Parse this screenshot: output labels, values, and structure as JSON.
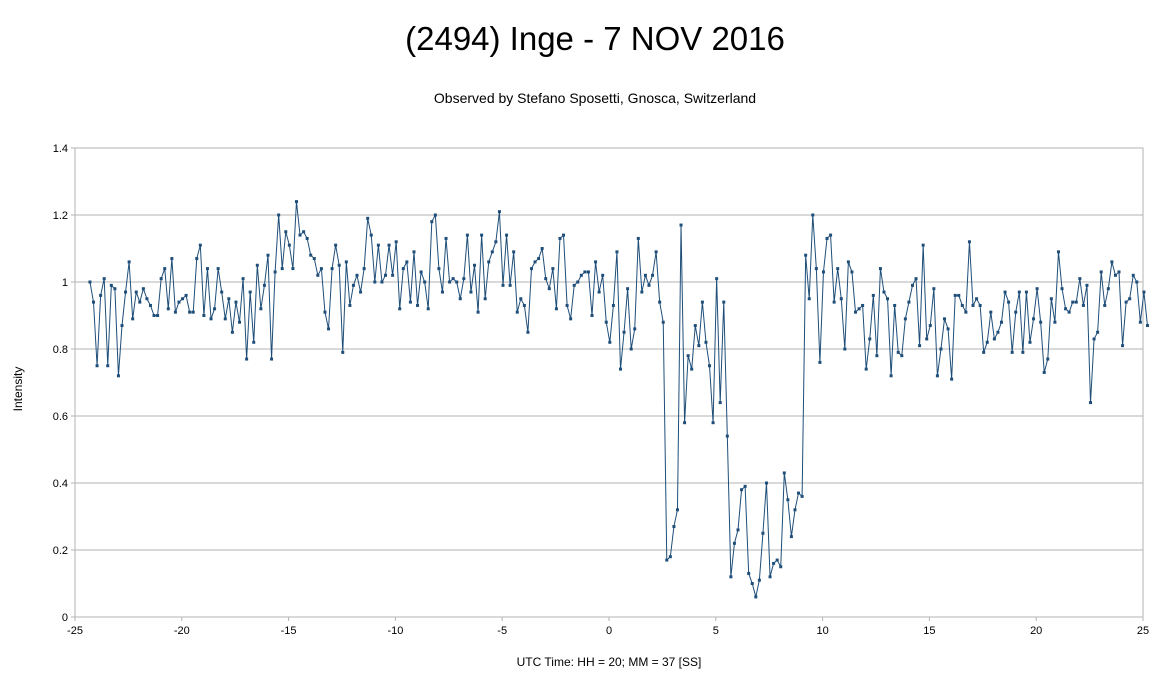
{
  "chart_data": {
    "type": "line",
    "title": "(2494) Inge - 7 NOV 2016",
    "subtitle": "Observed by Stefano Sposetti, Gnosca, Switzerland",
    "xlabel": "UTC Time: HH = 20; MM = 37 [SS]",
    "ylabel": "Intensity",
    "xlim": [
      -25,
      25
    ],
    "ylim": [
      0,
      1.4
    ],
    "x_ticks": [
      "-25",
      "-20",
      "-15",
      "-10",
      "-5",
      "0",
      "5",
      "10",
      "15",
      "20",
      "25"
    ],
    "y_ticks": [
      "0",
      "0.2",
      "0.4",
      "0.6",
      "0.8",
      "1",
      "1.2",
      "1.4"
    ],
    "grid": true,
    "legend": "none",
    "series_color": "#1f4e79",
    "series": [
      {
        "x_start": -24.3,
        "x_step": 0.1667,
        "values": [
          1.0,
          0.94,
          0.75,
          0.96,
          1.01,
          0.75,
          0.99,
          0.98,
          0.72,
          0.87,
          0.97,
          1.06,
          0.89,
          0.97,
          0.94,
          0.98,
          0.95,
          0.93,
          0.9,
          0.9,
          1.01,
          1.04,
          0.92,
          1.07,
          0.91,
          0.94,
          0.95,
          0.96,
          0.91,
          0.91,
          1.07,
          1.11,
          0.9,
          1.04,
          0.89,
          0.92,
          1.04,
          0.97,
          0.89,
          0.95,
          0.85,
          0.94,
          0.88,
          1.01,
          0.77,
          0.97,
          0.82,
          1.05,
          0.92,
          0.99,
          1.08,
          0.77,
          1.03,
          1.2,
          1.04,
          1.15,
          1.11,
          1.04,
          1.24,
          1.14,
          1.15,
          1.13,
          1.08,
          1.07,
          1.02,
          1.04,
          0.91,
          0.86,
          1.04,
          1.11,
          1.05,
          0.79,
          1.06,
          0.93,
          0.99,
          1.02,
          0.97,
          1.04,
          1.19,
          1.14,
          1.0,
          1.11,
          1.0,
          1.02,
          1.11,
          1.02,
          1.12,
          0.92,
          1.04,
          1.06,
          0.94,
          1.09,
          0.93,
          1.03,
          1.0,
          0.92,
          1.18,
          1.2,
          1.04,
          0.97,
          1.13,
          1.0,
          1.01,
          1.0,
          0.95,
          1.01,
          1.14,
          0.97,
          1.05,
          0.91,
          1.14,
          0.95,
          1.06,
          1.09,
          1.12,
          1.21,
          0.99,
          1.14,
          0.99,
          1.09,
          0.91,
          0.95,
          0.93,
          0.85,
          1.04,
          1.06,
          1.07,
          1.1,
          1.01,
          0.98,
          1.04,
          0.92,
          1.13,
          1.14,
          0.93,
          0.89,
          0.99,
          1.0,
          1.02,
          1.03,
          1.03,
          0.9,
          1.06,
          0.97,
          1.02,
          0.88,
          0.82,
          0.93,
          1.09,
          0.74,
          0.85,
          0.98,
          0.8,
          0.86,
          1.13,
          0.97,
          1.02,
          0.99,
          1.02,
          1.09,
          0.94,
          0.88,
          0.17,
          0.18,
          0.27,
          0.32,
          1.17,
          0.58,
          0.78,
          0.74,
          0.87,
          0.81,
          0.94,
          0.82,
          0.75,
          0.58,
          1.01,
          0.64,
          0.94,
          0.54,
          0.12,
          0.22,
          0.26,
          0.38,
          0.39,
          0.13,
          0.1,
          0.06,
          0.11,
          0.25,
          0.4,
          0.12,
          0.16,
          0.17,
          0.15,
          0.43,
          0.35,
          0.24,
          0.32,
          0.37,
          0.36,
          1.08,
          0.95,
          1.2,
          1.04,
          0.76,
          1.03,
          1.13,
          1.14,
          0.94,
          1.04,
          0.95,
          0.8,
          1.06,
          1.03,
          0.91,
          0.92,
          0.93,
          0.74,
          0.83,
          0.96,
          0.78,
          1.04,
          0.97,
          0.95,
          0.72,
          0.93,
          0.79,
          0.78,
          0.89,
          0.94,
          0.99,
          1.01,
          0.81,
          1.11,
          0.83,
          0.87,
          0.98,
          0.72,
          0.8,
          0.89,
          0.86,
          0.71,
          0.96,
          0.96,
          0.93,
          0.91,
          1.12,
          0.93,
          0.95,
          0.93,
          0.79,
          0.82,
          0.91,
          0.83,
          0.85,
          0.88,
          0.97,
          0.94,
          0.79,
          0.91,
          0.97,
          0.79,
          0.97,
          0.82,
          0.89,
          0.98,
          0.88,
          0.73,
          0.77,
          0.95,
          0.88,
          1.09,
          0.98,
          0.92,
          0.91,
          0.94,
          0.94,
          1.01,
          0.93,
          0.99,
          0.64,
          0.83,
          0.85,
          1.03,
          0.93,
          0.98,
          1.06,
          1.02,
          1.03,
          0.81,
          0.94,
          0.95,
          1.02,
          1.0,
          0.88,
          0.97,
          0.87
        ]
      }
    ]
  }
}
